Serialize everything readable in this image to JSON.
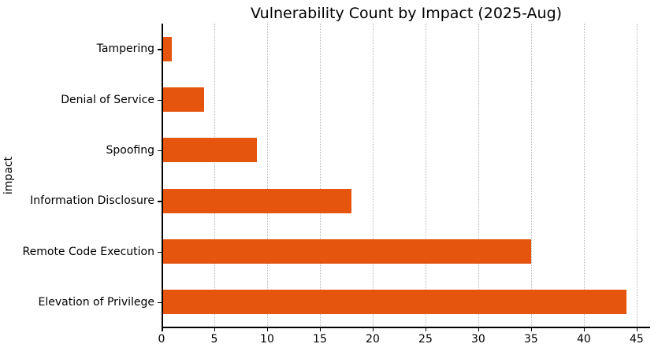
{
  "chart_data": {
    "type": "bar",
    "orientation": "horizontal",
    "title": "Vulnerability Count by Impact (2025-Aug)",
    "xlabel": "",
    "ylabel": "impact",
    "categories": [
      "Tampering",
      "Denial of Service",
      "Spoofing",
      "Information Disclosure",
      "Remote Code Execution",
      "Elevation of Privilege"
    ],
    "values": [
      1,
      4,
      9,
      18,
      35,
      44
    ],
    "x_ticks": [
      0,
      5,
      10,
      15,
      20,
      25,
      30,
      35,
      40,
      45
    ],
    "xlim": [
      0,
      46.2
    ],
    "bar_color": "#e6550d",
    "grid": "vertical dotted",
    "grid_color": "#b8b8b8",
    "legend": "none",
    "background_color": "#ffffff",
    "text_color": "#000000"
  }
}
